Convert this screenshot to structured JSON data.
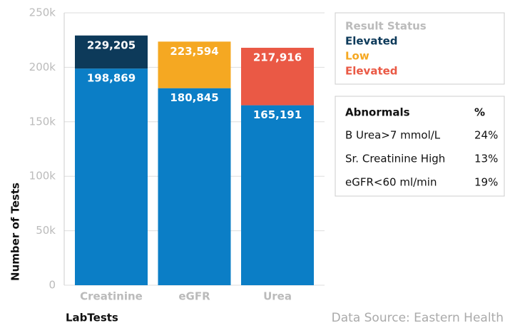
{
  "chart_data": {
    "type": "bar",
    "categories": [
      "Creatinine",
      "eGFR",
      "Urea"
    ],
    "series": [
      {
        "color": "#0b7ec6",
        "values": [
          198869,
          180845,
          165191
        ],
        "value_labels": [
          "198,869",
          "180,845",
          "165,191"
        ]
      },
      {
        "colors": [
          "#0d3a5a",
          "#f5a822",
          "#ea5945"
        ],
        "values": [
          30336,
          42749,
          52725
        ]
      }
    ],
    "totals": [
      229205,
      223594,
      217916
    ],
    "total_labels": [
      "229,205",
      "223,594",
      "217,916"
    ],
    "ylim": [
      0,
      250000
    ],
    "yticks": [
      0,
      {
        "value": 50000,
        "label": "50k"
      },
      {
        "value": 100000,
        "label": "100k"
      },
      {
        "value": 150000,
        "label": "150k"
      },
      {
        "value": 200000,
        "label": "200k"
      },
      {
        "value": 250000,
        "label": "250k"
      }
    ],
    "grid": true,
    "y_label": "Number of Tests",
    "x_label": "LabTests",
    "legend": {
      "title": "Result Status",
      "labels": [
        "Elevated",
        "Low",
        "Elevated"
      ]
    },
    "source": "Data Source: Eastern Health"
  },
  "table": {
    "header": [
      "Abnormals",
      "%"
    ],
    "rows": [
      [
        "B Urea>7 mmol/L",
        "24%"
      ],
      [
        "Sr. Creatinine High",
        "13%"
      ],
      [
        "eGFR<60 ml/min",
        "19%"
      ]
    ]
  }
}
